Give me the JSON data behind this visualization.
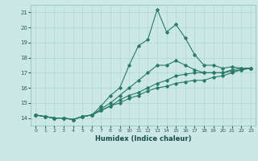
{
  "title": "",
  "xlabel": "Humidex (Indice chaleur)",
  "ylabel": "",
  "bg_color": "#cce8e4",
  "grid_color": "#b0d8d4",
  "line_color": "#2a7a6a",
  "xlim": [
    -0.5,
    23.5
  ],
  "ylim": [
    13.5,
    21.5
  ],
  "yticks": [
    14,
    15,
    16,
    17,
    18,
    19,
    20,
    21
  ],
  "xticks": [
    0,
    1,
    2,
    3,
    4,
    5,
    6,
    7,
    8,
    9,
    10,
    11,
    12,
    13,
    14,
    15,
    16,
    17,
    18,
    19,
    20,
    21,
    22,
    23
  ],
  "series": [
    [
      14.2,
      14.1,
      14.0,
      14.0,
      13.9,
      14.1,
      14.2,
      14.8,
      15.5,
      16.0,
      17.5,
      18.8,
      19.2,
      21.2,
      19.7,
      20.2,
      19.3,
      18.2,
      17.5,
      17.5,
      17.3,
      17.4,
      17.3,
      17.3
    ],
    [
      14.2,
      14.1,
      14.0,
      14.0,
      13.9,
      14.1,
      14.2,
      14.6,
      15.0,
      15.5,
      16.0,
      16.5,
      17.0,
      17.5,
      17.5,
      17.8,
      17.5,
      17.2,
      17.0,
      17.0,
      17.0,
      17.2,
      17.3,
      17.3
    ],
    [
      14.2,
      14.1,
      14.0,
      14.0,
      13.9,
      14.1,
      14.2,
      14.5,
      14.8,
      15.2,
      15.5,
      15.7,
      16.0,
      16.3,
      16.5,
      16.8,
      16.9,
      17.0,
      17.0,
      17.0,
      17.0,
      17.1,
      17.2,
      17.3
    ],
    [
      14.2,
      14.1,
      14.0,
      14.0,
      13.9,
      14.1,
      14.2,
      14.5,
      14.8,
      15.0,
      15.3,
      15.5,
      15.8,
      16.0,
      16.1,
      16.3,
      16.4,
      16.5,
      16.5,
      16.7,
      16.8,
      17.0,
      17.2,
      17.3
    ]
  ]
}
